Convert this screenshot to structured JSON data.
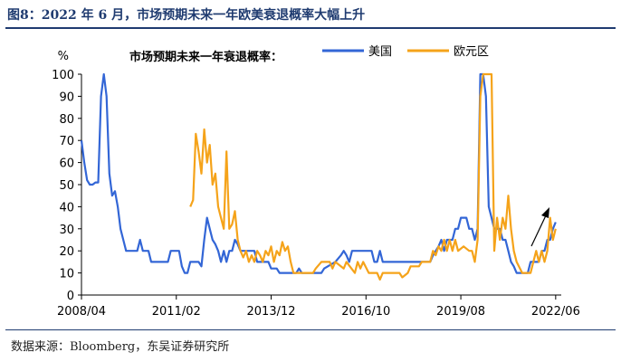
{
  "header": {
    "title": "图8：2022 年 6 月，市场预期未来一年欧美衰退概率大幅上升"
  },
  "footer": {
    "source": "数据来源：Bloomberg，东吴证券研究所"
  },
  "colors": {
    "us": "#3366d6",
    "eu": "#f5a31a",
    "title": "#1f3b70"
  },
  "chart_data": {
    "type": "line",
    "title": "市场预期未来一年衰退概率：",
    "ylabel": "%",
    "xlabel": "",
    "ylim": [
      0,
      100
    ],
    "yticks": [
      0,
      10,
      20,
      30,
      40,
      50,
      60,
      70,
      80,
      90,
      100
    ],
    "xlim": [
      "2008-04",
      "2022-08"
    ],
    "xticks": [
      "2008/04",
      "2011/02",
      "2013/12",
      "2016/10",
      "2019/08",
      "2022/06"
    ],
    "legend_position": "top-right",
    "grid": false,
    "annotation": "arrow",
    "series": [
      {
        "name": "美国",
        "color": "#3366d6",
        "points": [
          [
            "2008-04",
            70
          ],
          [
            "2008-05",
            60
          ],
          [
            "2008-06",
            52
          ],
          [
            "2008-07",
            50
          ],
          [
            "2008-08",
            50
          ],
          [
            "2008-09",
            51
          ],
          [
            "2008-10",
            51
          ],
          [
            "2008-11",
            90
          ],
          [
            "2008-12",
            100
          ],
          [
            "2009-01",
            90
          ],
          [
            "2009-02",
            55
          ],
          [
            "2009-03",
            45
          ],
          [
            "2009-04",
            47
          ],
          [
            "2009-05",
            40
          ],
          [
            "2009-06",
            30
          ],
          [
            "2009-07",
            25
          ],
          [
            "2009-08",
            20
          ],
          [
            "2009-10",
            20
          ],
          [
            "2009-12",
            20
          ],
          [
            "2010-01",
            25
          ],
          [
            "2010-02",
            20
          ],
          [
            "2010-04",
            20
          ],
          [
            "2010-05",
            15
          ],
          [
            "2010-08",
            15
          ],
          [
            "2010-11",
            15
          ],
          [
            "2010-12",
            20
          ],
          [
            "2011-03",
            20
          ],
          [
            "2011-04",
            13
          ],
          [
            "2011-05",
            10
          ],
          [
            "2011-06",
            10
          ],
          [
            "2011-07",
            15
          ],
          [
            "2011-10",
            15
          ],
          [
            "2011-11",
            13
          ],
          [
            "2011-12",
            25
          ],
          [
            "2012-01",
            35
          ],
          [
            "2012-02",
            30
          ],
          [
            "2012-03",
            25
          ],
          [
            "2012-04",
            23
          ],
          [
            "2012-05",
            20
          ],
          [
            "2012-06",
            15
          ],
          [
            "2012-07",
            20
          ],
          [
            "2012-08",
            15
          ],
          [
            "2012-09",
            20
          ],
          [
            "2012-10",
            20
          ],
          [
            "2012-11",
            25
          ],
          [
            "2012-12",
            23
          ],
          [
            "2013-01",
            20
          ],
          [
            "2013-06",
            20
          ],
          [
            "2013-07",
            15
          ],
          [
            "2013-11",
            15
          ],
          [
            "2013-12",
            12
          ],
          [
            "2014-02",
            12
          ],
          [
            "2014-03",
            10
          ],
          [
            "2014-09",
            10
          ],
          [
            "2014-10",
            12
          ],
          [
            "2014-11",
            10
          ],
          [
            "2015-06",
            10
          ],
          [
            "2015-07",
            12
          ],
          [
            "2015-11",
            15
          ],
          [
            "2016-01",
            18
          ],
          [
            "2016-02",
            20
          ],
          [
            "2016-03",
            18
          ],
          [
            "2016-04",
            15
          ],
          [
            "2016-05",
            20
          ],
          [
            "2016-12",
            20
          ],
          [
            "2017-01",
            15
          ],
          [
            "2017-02",
            15
          ],
          [
            "2017-03",
            20
          ],
          [
            "2017-04",
            15
          ],
          [
            "2018-09",
            15
          ],
          [
            "2018-10",
            18
          ],
          [
            "2018-12",
            22
          ],
          [
            "2019-01",
            25
          ],
          [
            "2019-02",
            20
          ],
          [
            "2019-03",
            25
          ],
          [
            "2019-05",
            25
          ],
          [
            "2019-06",
            30
          ],
          [
            "2019-07",
            30
          ],
          [
            "2019-08",
            35
          ],
          [
            "2019-10",
            35
          ],
          [
            "2019-11",
            30
          ],
          [
            "2019-12",
            30
          ],
          [
            "2020-01",
            25
          ],
          [
            "2020-02",
            30
          ],
          [
            "2020-03",
            100
          ],
          [
            "2020-04",
            100
          ],
          [
            "2020-05",
            90
          ],
          [
            "2020-06",
            40
          ],
          [
            "2020-07",
            35
          ],
          [
            "2020-08",
            30
          ],
          [
            "2020-10",
            30
          ],
          [
            "2020-11",
            25
          ],
          [
            "2020-12",
            25
          ],
          [
            "2021-01",
            20
          ],
          [
            "2021-02",
            15
          ],
          [
            "2021-03",
            13
          ],
          [
            "2021-04",
            10
          ],
          [
            "2021-08",
            10
          ],
          [
            "2021-09",
            15
          ],
          [
            "2021-12",
            15
          ],
          [
            "2022-01",
            20
          ],
          [
            "2022-02",
            20
          ],
          [
            "2022-03",
            25
          ],
          [
            "2022-04",
            25
          ],
          [
            "2022-05",
            30
          ],
          [
            "2022-06",
            33
          ]
        ]
      },
      {
        "name": "欧元区",
        "color": "#f5a31a",
        "points": [
          [
            "2011-07",
            40
          ],
          [
            "2011-08",
            43
          ],
          [
            "2011-09",
            73
          ],
          [
            "2011-10",
            65
          ],
          [
            "2011-11",
            55
          ],
          [
            "2011-12",
            75
          ],
          [
            "2012-01",
            60
          ],
          [
            "2012-02",
            68
          ],
          [
            "2012-03",
            50
          ],
          [
            "2012-04",
            55
          ],
          [
            "2012-05",
            40
          ],
          [
            "2012-06",
            35
          ],
          [
            "2012-07",
            30
          ],
          [
            "2012-08",
            65
          ],
          [
            "2012-09",
            30
          ],
          [
            "2012-10",
            32
          ],
          [
            "2012-11",
            38
          ],
          [
            "2012-12",
            25
          ],
          [
            "2013-01",
            20
          ],
          [
            "2013-02",
            17
          ],
          [
            "2013-03",
            20
          ],
          [
            "2013-04",
            15
          ],
          [
            "2013-05",
            18
          ],
          [
            "2013-06",
            15
          ],
          [
            "2013-07",
            20
          ],
          [
            "2013-08",
            18
          ],
          [
            "2013-09",
            15
          ],
          [
            "2013-10",
            20
          ],
          [
            "2013-11",
            18
          ],
          [
            "2013-12",
            22
          ],
          [
            "2014-01",
            15
          ],
          [
            "2014-02",
            20
          ],
          [
            "2014-03",
            18
          ],
          [
            "2014-04",
            24
          ],
          [
            "2014-05",
            20
          ],
          [
            "2014-06",
            22
          ],
          [
            "2014-07",
            15
          ],
          [
            "2014-08",
            10
          ],
          [
            "2014-12",
            10
          ],
          [
            "2015-03",
            10
          ],
          [
            "2015-04",
            12
          ],
          [
            "2015-06",
            15
          ],
          [
            "2015-09",
            15
          ],
          [
            "2015-10",
            12
          ],
          [
            "2015-11",
            15
          ],
          [
            "2016-02",
            12
          ],
          [
            "2016-03",
            15
          ],
          [
            "2016-06",
            10
          ],
          [
            "2016-07",
            15
          ],
          [
            "2016-08",
            12
          ],
          [
            "2016-09",
            15
          ],
          [
            "2016-11",
            10
          ],
          [
            "2017-02",
            10
          ],
          [
            "2017-03",
            7
          ],
          [
            "2017-04",
            10
          ],
          [
            "2017-10",
            10
          ],
          [
            "2017-11",
            8
          ],
          [
            "2018-01",
            10
          ],
          [
            "2018-02",
            13
          ],
          [
            "2018-05",
            13
          ],
          [
            "2018-06",
            15
          ],
          [
            "2018-09",
            15
          ],
          [
            "2018-10",
            20
          ],
          [
            "2018-11",
            18
          ],
          [
            "2018-12",
            22
          ],
          [
            "2019-01",
            20
          ],
          [
            "2019-02",
            25
          ],
          [
            "2019-03",
            20
          ],
          [
            "2019-04",
            25
          ],
          [
            "2019-05",
            20
          ],
          [
            "2019-06",
            25
          ],
          [
            "2019-07",
            20
          ],
          [
            "2019-09",
            22
          ],
          [
            "2019-11",
            20
          ],
          [
            "2019-12",
            20
          ],
          [
            "2020-01",
            15
          ],
          [
            "2020-02",
            25
          ],
          [
            "2020-03",
            90
          ],
          [
            "2020-04",
            100
          ],
          [
            "2020-05",
            100
          ],
          [
            "2020-06",
            100
          ],
          [
            "2020-07",
            100
          ],
          [
            "2020-08",
            20
          ],
          [
            "2020-09",
            35
          ],
          [
            "2020-10",
            25
          ],
          [
            "2020-11",
            35
          ],
          [
            "2020-12",
            30
          ],
          [
            "2021-01",
            45
          ],
          [
            "2021-02",
            30
          ],
          [
            "2021-03",
            20
          ],
          [
            "2021-04",
            15
          ],
          [
            "2021-06",
            10
          ],
          [
            "2021-09",
            10
          ],
          [
            "2021-10",
            15
          ],
          [
            "2021-11",
            20
          ],
          [
            "2021-12",
            15
          ],
          [
            "2022-01",
            20
          ],
          [
            "2022-02",
            15
          ],
          [
            "2022-03",
            20
          ],
          [
            "2022-04",
            35
          ],
          [
            "2022-05",
            25
          ],
          [
            "2022-06",
            30
          ]
        ]
      }
    ]
  }
}
